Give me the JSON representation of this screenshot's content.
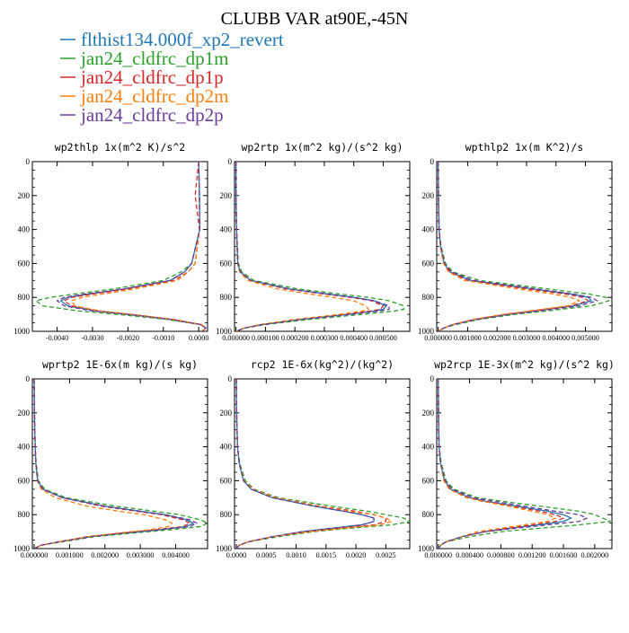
{
  "title": "CLUBB VAR at90E,-45N",
  "legend": [
    {
      "label": "flthist134.000f_xp2_revert",
      "color": "#1f77b4",
      "dash": ""
    },
    {
      "label": "jan24_cldfrc_dp1m",
      "color": "#2ca02c",
      "dash": "5,3"
    },
    {
      "label": "jan24_cldfrc_dp1p",
      "color": "#d62728",
      "dash": "5,3"
    },
    {
      "label": "jan24_cldfrc_dp2m",
      "color": "#ff7f0e",
      "dash": "5,3"
    },
    {
      "label": "jan24_cldfrc_dp2p",
      "color": "#6a3d9a",
      "dash": "5,3"
    }
  ],
  "chart_data": [
    {
      "type": "line",
      "title": "wp2thlp  1x(m^2 K)/s^2",
      "ylim": [
        1000,
        0
      ],
      "yticks": [
        0,
        200,
        400,
        600,
        800,
        1000
      ],
      "ytick_labels": [
        "0",
        "200",
        "400",
        "600",
        "800",
        "1000"
      ],
      "xlim": [
        -0.0047,
        0.00025
      ],
      "xticks": [
        -0.004,
        -0.003,
        -0.002,
        -0.001,
        0.0
      ],
      "xtick_labels": [
        "-0.0040",
        "-0.0030",
        "-0.0020",
        "-0.0010",
        "0.0000"
      ],
      "y": [
        0,
        200,
        400,
        600,
        650,
        700,
        750,
        780,
        800,
        820,
        850,
        880,
        900,
        930,
        960,
        980,
        1000
      ],
      "series": [
        {
          "name": "flthist134.000f_xp2_revert",
          "x": [
            0.0,
            2e-05,
            3e-05,
            -0.0002,
            -0.0004,
            -0.0008,
            -0.0021,
            -0.0031,
            -0.0037,
            -0.0039,
            -0.0037,
            -0.0029,
            -0.002,
            -0.0008,
            5e-05,
            0.0002,
            0.0001
          ]
        },
        {
          "name": "jan24_cldfrc_dp1m",
          "x": [
            0.0,
            2e-05,
            3e-05,
            -0.0002,
            -0.0005,
            -0.001,
            -0.0024,
            -0.0035,
            -0.0042,
            -0.0046,
            -0.0044,
            -0.0034,
            -0.0023,
            -0.0009,
            4e-05,
            0.0002,
            0.0001
          ]
        },
        {
          "name": "jan24_cldfrc_dp1p",
          "x": [
            0.0,
            -0.0001,
            2e-05,
            -0.0001,
            -0.0003,
            -0.0007,
            -0.002,
            -0.003,
            -0.0036,
            -0.0038,
            -0.0036,
            -0.0028,
            -0.0019,
            -0.0007,
            6e-05,
            0.0002,
            0.0001
          ]
        },
        {
          "name": "jan24_cldfrc_dp2m",
          "x": [
            0.0,
            2e-05,
            3e-05,
            -0.0001,
            -0.0003,
            -0.0006,
            -0.0018,
            -0.0027,
            -0.0033,
            -0.0036,
            -0.0035,
            -0.0028,
            -0.0019,
            -0.0007,
            8e-05,
            0.0002,
            0.0001
          ]
        },
        {
          "name": "jan24_cldfrc_dp2p",
          "x": [
            0.0,
            2e-05,
            3e-05,
            -0.0002,
            -0.0004,
            -0.0008,
            -0.0021,
            -0.0032,
            -0.0038,
            -0.004,
            -0.0038,
            -0.003,
            -0.002,
            -0.0008,
            4e-05,
            0.0002,
            0.0001
          ]
        }
      ]
    },
    {
      "type": "line",
      "title": "wp2rtp  1x(m^2 kg)/(s^2 kg)",
      "ylim": [
        1000,
        0
      ],
      "yticks": [
        0,
        200,
        400,
        600,
        800,
        1000
      ],
      "ytick_labels": [
        "0",
        "200",
        "400",
        "600",
        "800",
        "1000"
      ],
      "xlim": [
        -5e-06,
        0.00059
      ],
      "xticks": [
        0.0,
        0.0001,
        0.0002,
        0.0003,
        0.0004,
        0.0005
      ],
      "xtick_labels": [
        "0.000000",
        "0.000100",
        "0.000200",
        "0.000300",
        "0.000400",
        "0.000500"
      ],
      "y": [
        0,
        200,
        400,
        600,
        650,
        700,
        750,
        780,
        800,
        820,
        850,
        870,
        880,
        900,
        930,
        960,
        980,
        1000
      ],
      "series": [
        {
          "name": "flthist134.000f_xp2_revert",
          "x": [
            0.0,
            0.0,
            2e-06,
            6e-06,
            1.5e-05,
            5e-05,
            0.00018,
            0.00031,
            0.0004,
            0.00047,
            0.00051,
            0.0005,
            0.00047,
            0.00038,
            0.00022,
            9e-05,
            3e-05,
            0.0
          ]
        },
        {
          "name": "jan24_cldfrc_dp1m",
          "x": [
            0.0,
            0.0,
            2e-06,
            8e-06,
            2e-05,
            6e-05,
            0.00021,
            0.00035,
            0.00045,
            0.00052,
            0.00057,
            0.00057,
            0.00054,
            0.00043,
            0.00025,
            0.0001,
            3e-05,
            0.0
          ]
        },
        {
          "name": "jan24_cldfrc_dp1p",
          "x": [
            0.0,
            0.0,
            2e-06,
            6e-06,
            1.4e-05,
            4.8e-05,
            0.00017,
            0.0003,
            0.00039,
            0.00046,
            0.0005,
            0.00049,
            0.00046,
            0.00037,
            0.00021,
            9e-05,
            3e-05,
            0.0
          ]
        },
        {
          "name": "jan24_cldfrc_dp2m",
          "x": [
            0.0,
            0.0,
            2e-06,
            5e-06,
            1.2e-05,
            4e-05,
            0.00014,
            0.00025,
            0.00033,
            0.0004,
            0.00044,
            0.00045,
            0.00043,
            0.00035,
            0.0002,
            8e-05,
            3e-05,
            0.0
          ]
        },
        {
          "name": "jan24_cldfrc_dp2p",
          "x": [
            0.0,
            0.0,
            2e-06,
            6e-06,
            1.5e-05,
            5e-05,
            0.00018,
            0.00031,
            0.0004,
            0.00047,
            0.00052,
            0.00052,
            0.00049,
            0.00039,
            0.00022,
            9e-05,
            3e-05,
            0.0
          ]
        }
      ]
    },
    {
      "type": "line",
      "title": "wpthlp2  1x(m K^2)/s",
      "ylim": [
        1000,
        0
      ],
      "yticks": [
        0,
        200,
        400,
        600,
        800,
        1000
      ],
      "ytick_labels": [
        "0",
        "200",
        "400",
        "600",
        "800",
        "1000"
      ],
      "xlim": [
        -5e-05,
        0.0059
      ],
      "xticks": [
        0.0,
        0.001,
        0.002,
        0.003,
        0.004,
        0.005
      ],
      "xtick_labels": [
        "0.000000",
        "0.001000",
        "0.002000",
        "0.003000",
        "0.004000",
        "0.005000"
      ],
      "y": [
        0,
        200,
        400,
        500,
        600,
        650,
        700,
        750,
        780,
        800,
        820,
        850,
        880,
        900,
        930,
        960,
        980,
        1000
      ],
      "series": [
        {
          "name": "flthist134.000f_xp2_revert",
          "x": [
            0.0,
            1e-05,
            3e-05,
            8e-05,
            0.0002,
            0.0004,
            0.0011,
            0.0032,
            0.0045,
            0.0051,
            0.0052,
            0.0046,
            0.0033,
            0.0024,
            0.0013,
            0.0005,
            0.0002,
            0.0
          ]
        },
        {
          "name": "jan24_cldfrc_dp1m",
          "x": [
            0.0,
            1e-05,
            3e-05,
            0.0001,
            0.00025,
            0.0005,
            0.0014,
            0.0037,
            0.0051,
            0.0057,
            0.0058,
            0.0052,
            0.0037,
            0.0026,
            0.0014,
            0.0006,
            0.0002,
            0.0
          ]
        },
        {
          "name": "jan24_cldfrc_dp1p",
          "x": [
            0.0,
            1e-05,
            3e-05,
            8e-05,
            0.0002,
            0.0004,
            0.001,
            0.003,
            0.0043,
            0.0049,
            0.0051,
            0.0045,
            0.0032,
            0.0023,
            0.0012,
            0.0005,
            0.0002,
            0.0
          ]
        },
        {
          "name": "jan24_cldfrc_dp2m",
          "x": [
            0.0,
            1e-05,
            3e-05,
            7e-05,
            0.00018,
            0.00035,
            0.0009,
            0.0027,
            0.0039,
            0.0045,
            0.0048,
            0.0044,
            0.0031,
            0.0022,
            0.0012,
            0.0005,
            0.0002,
            0.0
          ]
        },
        {
          "name": "jan24_cldfrc_dp2p",
          "x": [
            0.0,
            1e-05,
            3e-05,
            9e-05,
            0.00022,
            0.00045,
            0.0012,
            0.0033,
            0.0046,
            0.0052,
            0.0054,
            0.0048,
            0.0034,
            0.0024,
            0.0013,
            0.0005,
            0.0002,
            0.0
          ]
        }
      ]
    },
    {
      "type": "line",
      "title": "wprtp2  1E-6x(m kg)/(s kg)",
      "ylim": [
        1000,
        0
      ],
      "yticks": [
        0,
        200,
        400,
        600,
        800,
        1000
      ],
      "ytick_labels": [
        "0",
        "200",
        "400",
        "600",
        "800",
        "1000"
      ],
      "xlim": [
        -5e-05,
        0.0049
      ],
      "xticks": [
        0.0,
        0.001,
        0.002,
        0.003,
        0.004
      ],
      "xtick_labels": [
        "0.000000",
        "0.001000",
        "0.002000",
        "0.003000",
        "0.004000"
      ],
      "y": [
        0,
        200,
        400,
        500,
        600,
        650,
        700,
        750,
        780,
        800,
        830,
        850,
        870,
        890,
        910,
        930,
        960,
        980,
        1000
      ],
      "series": [
        {
          "name": "flthist134.000f_xp2_revert",
          "x": [
            0.0,
            1e-05,
            3e-05,
            5e-05,
            0.0001,
            0.00025,
            0.0008,
            0.002,
            0.003,
            0.0037,
            0.0043,
            0.0045,
            0.0043,
            0.0035,
            0.0025,
            0.0016,
            0.0007,
            0.0002,
            0.0
          ]
        },
        {
          "name": "jan24_cldfrc_dp1m",
          "x": [
            0.0,
            1e-05,
            3e-05,
            6e-05,
            0.00012,
            0.0003,
            0.0009,
            0.0023,
            0.0034,
            0.0041,
            0.0047,
            0.0049,
            0.0047,
            0.0038,
            0.0027,
            0.0017,
            0.0008,
            0.0002,
            0.0
          ]
        },
        {
          "name": "jan24_cldfrc_dp1p",
          "x": [
            0.0,
            1e-05,
            3e-05,
            5e-05,
            0.0001,
            0.00024,
            0.0008,
            0.0019,
            0.0029,
            0.0036,
            0.0042,
            0.0044,
            0.0042,
            0.0034,
            0.0024,
            0.0015,
            0.0007,
            0.0002,
            0.0
          ]
        },
        {
          "name": "jan24_cldfrc_dp2m",
          "x": [
            0.0,
            1e-05,
            3e-05,
            5e-05,
            9e-05,
            0.0002,
            0.0006,
            0.0015,
            0.0024,
            0.0031,
            0.0037,
            0.0039,
            0.0038,
            0.0032,
            0.0023,
            0.0015,
            0.0007,
            0.0002,
            0.0
          ]
        },
        {
          "name": "jan24_cldfrc_dp2p",
          "x": [
            0.0,
            1e-05,
            3e-05,
            5e-05,
            0.0001,
            0.00026,
            0.0008,
            0.002,
            0.003,
            0.0037,
            0.0044,
            0.0046,
            0.0044,
            0.0035,
            0.0025,
            0.0016,
            0.0007,
            0.0002,
            0.0
          ]
        }
      ]
    },
    {
      "type": "line",
      "title": "rcp2  1E-6x(kg^2)/(kg^2)",
      "ylim": [
        1000,
        0
      ],
      "yticks": [
        0,
        200,
        400,
        600,
        800,
        1000
      ],
      "ytick_labels": [
        "0",
        "200",
        "400",
        "600",
        "800",
        "1000"
      ],
      "xlim": [
        -3e-05,
        0.0029
      ],
      "xticks": [
        0.0,
        0.0005,
        0.001,
        0.0015,
        0.002,
        0.0025
      ],
      "xtick_labels": [
        "0.0000",
        "0.0005",
        "0.0010",
        "0.0015",
        "0.0020",
        "0.0025"
      ],
      "y": [
        0,
        200,
        400,
        500,
        600,
        650,
        700,
        750,
        780,
        800,
        820,
        840,
        860,
        880,
        900,
        930,
        960,
        980,
        1000
      ],
      "series": [
        {
          "name": "flthist134.000f_xp2_revert",
          "x": [
            0.0,
            5e-06,
            2e-05,
            5e-05,
            0.00012,
            0.00025,
            0.0006,
            0.0013,
            0.0018,
            0.0021,
            0.0023,
            0.0023,
            0.0021,
            0.0016,
            0.0011,
            0.0006,
            0.0002,
            5e-05,
            0.0
          ]
        },
        {
          "name": "jan24_cldfrc_dp1m",
          "x": [
            0.0,
            5e-06,
            2e-05,
            6e-05,
            0.00015,
            0.0003,
            0.0007,
            0.0016,
            0.0022,
            0.0025,
            0.0028,
            0.0029,
            0.0026,
            0.0019,
            0.0013,
            0.0007,
            0.0002,
            5e-05,
            0.0
          ]
        },
        {
          "name": "jan24_cldfrc_dp1p",
          "x": [
            0.0,
            5e-06,
            2e-05,
            5e-05,
            0.00013,
            0.00027,
            0.00065,
            0.0014,
            0.002,
            0.0023,
            0.0025,
            0.0025,
            0.0023,
            0.0017,
            0.0012,
            0.0006,
            0.0002,
            5e-05,
            0.0
          ]
        },
        {
          "name": "jan24_cldfrc_dp2m",
          "x": [
            0.0,
            5e-06,
            2e-05,
            5e-05,
            0.00013,
            0.00027,
            0.00065,
            0.0014,
            0.0019,
            0.0023,
            0.0025,
            0.0026,
            0.0024,
            0.0018,
            0.0012,
            0.0006,
            0.0002,
            5e-05,
            0.0
          ]
        },
        {
          "name": "jan24_cldfrc_dp2p",
          "x": [
            0.0,
            5e-06,
            2e-05,
            5e-05,
            0.00012,
            0.00025,
            0.0006,
            0.0013,
            0.0018,
            0.0021,
            0.0023,
            0.0023,
            0.0021,
            0.0016,
            0.0011,
            0.0006,
            0.0002,
            5e-05,
            0.0
          ]
        }
      ]
    },
    {
      "type": "line",
      "title": "wp2rcp  1E-3x(m^2 kg)/(s^2 kg)",
      "ylim": [
        1000,
        0
      ],
      "yticks": [
        0,
        200,
        400,
        600,
        800,
        1000
      ],
      "ytick_labels": [
        "0",
        "200",
        "400",
        "600",
        "800",
        "1000"
      ],
      "xlim": [
        -2e-05,
        0.00222
      ],
      "xticks": [
        0.0,
        0.0004,
        0.0008,
        0.0012,
        0.0016,
        0.002
      ],
      "xtick_labels": [
        "0.000000",
        "0.000400",
        "0.000800",
        "0.001200",
        "0.001600",
        "0.002000"
      ],
      "y": [
        0,
        200,
        400,
        500,
        600,
        650,
        700,
        720,
        750,
        780,
        800,
        820,
        840,
        860,
        880,
        900,
        930,
        960,
        980,
        1000
      ],
      "series": [
        {
          "name": "flthist134.000f_xp2_revert",
          "x": [
            0.0,
            3e-06,
            1e-05,
            3e-05,
            8e-05,
            0.00016,
            0.0004,
            0.0006,
            0.001,
            0.0014,
            0.0016,
            0.0017,
            0.0016,
            0.0013,
            0.0009,
            0.0006,
            0.0003,
            0.0001,
            3e-05,
            0.0
          ]
        },
        {
          "name": "jan24_cldfrc_dp1m",
          "x": [
            0.0,
            3e-06,
            1e-05,
            4e-05,
            0.0001,
            0.0002,
            0.0005,
            0.0008,
            0.0013,
            0.0018,
            0.002,
            0.0021,
            0.0022,
            0.0018,
            0.0013,
            0.0008,
            0.0004,
            0.0001,
            3e-05,
            0.0
          ]
        },
        {
          "name": "jan24_cldfrc_dp1p",
          "x": [
            0.0,
            3e-06,
            1e-05,
            3e-05,
            8e-05,
            0.00015,
            0.00038,
            0.00058,
            0.00095,
            0.0013,
            0.0015,
            0.0016,
            0.0015,
            0.0012,
            0.0009,
            0.0006,
            0.0003,
            0.0001,
            3e-05,
            0.0
          ]
        },
        {
          "name": "jan24_cldfrc_dp2m",
          "x": [
            0.0,
            3e-06,
            1e-05,
            3e-05,
            7e-05,
            0.00014,
            0.00036,
            0.00055,
            0.0009,
            0.0012,
            0.0014,
            0.0015,
            0.0014,
            0.0011,
            0.0008,
            0.0005,
            0.0003,
            0.0001,
            3e-05,
            0.0
          ]
        },
        {
          "name": "jan24_cldfrc_dp2p",
          "x": [
            0.0,
            3e-06,
            1e-05,
            3e-05,
            9e-05,
            0.00018,
            0.00045,
            0.0007,
            0.0011,
            0.0015,
            0.0018,
            0.0019,
            0.0018,
            0.0014,
            0.001,
            0.0006,
            0.0003,
            0.0001,
            3e-05,
            0.0
          ]
        }
      ]
    }
  ]
}
